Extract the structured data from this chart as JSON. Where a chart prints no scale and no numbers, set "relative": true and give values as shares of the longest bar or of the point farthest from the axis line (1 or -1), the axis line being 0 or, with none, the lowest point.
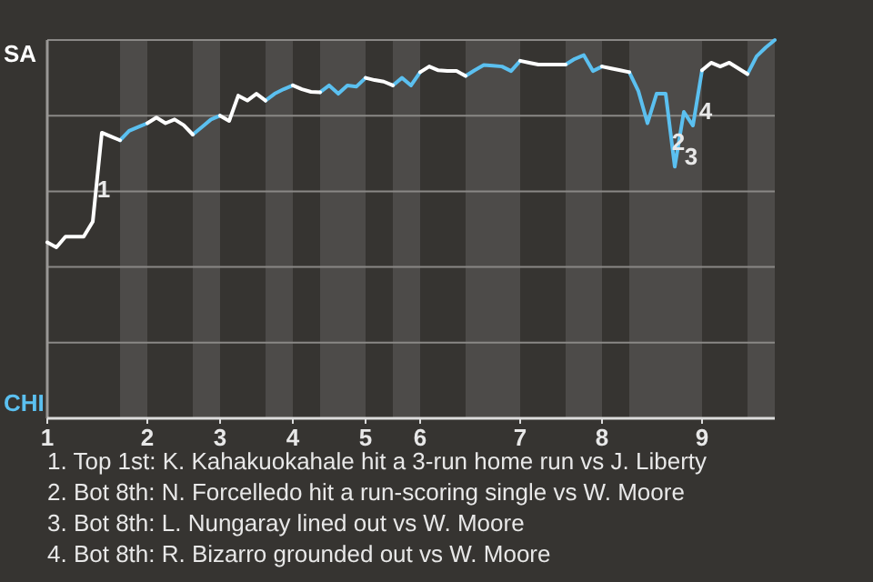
{
  "chart_data": {
    "type": "line",
    "relative": true,
    "categories": [
      "1",
      null,
      null,
      null,
      null,
      null,
      null,
      null,
      null,
      null,
      null,
      "2",
      null,
      null,
      null,
      null,
      null,
      null,
      null,
      "3",
      null,
      null,
      null,
      null,
      null,
      null,
      null,
      "4",
      null,
      null,
      null,
      null,
      null,
      null,
      null,
      "5",
      null,
      null,
      null,
      null,
      null,
      "6",
      null,
      null,
      null,
      null,
      null,
      null,
      null,
      null,
      null,
      null,
      "7",
      null,
      null,
      null,
      null,
      null,
      null,
      null,
      null,
      "8",
      null,
      null,
      null,
      null,
      null,
      null,
      null,
      null,
      null,
      null,
      "9",
      null,
      null,
      null,
      null,
      null,
      null,
      null,
      null
    ],
    "series": [
      {
        "name": "CHI",
        "color": "#5bc0f0",
        "values": [
          null,
          null,
          null,
          null,
          null,
          null,
          null,
          null,
          0.735,
          0.76,
          0.77,
          0.78,
          null,
          null,
          null,
          null,
          0.75,
          0.77,
          0.79,
          0.8,
          null,
          null,
          null,
          null,
          0.84,
          0.858,
          0.87,
          0.88,
          null,
          null,
          0.862,
          0.88,
          0.858,
          0.88,
          0.877,
          0.9,
          null,
          null,
          0.88,
          0.9,
          0.88,
          0.915,
          null,
          null,
          null,
          null,
          0.905,
          0.92,
          0.934,
          0.932,
          0.93,
          0.918,
          0.945,
          null,
          null,
          null,
          null,
          0.935,
          0.95,
          0.96,
          0.918,
          0.93,
          null,
          null,
          0.915,
          0.865,
          0.78,
          0.858,
          0.858,
          0.665,
          0.81,
          0.774,
          0.92,
          null,
          null,
          null,
          null,
          0.91,
          0.957,
          0.98,
          1.0
        ]
      },
      {
        "name": "SA",
        "color": "#ffffff",
        "values": [
          0.465,
          0.452,
          0.48,
          0.48,
          0.48,
          0.52,
          0.755,
          0.745,
          0.735,
          null,
          null,
          0.78,
          0.795,
          0.78,
          0.79,
          0.775,
          0.75,
          null,
          null,
          0.8,
          0.786,
          0.853,
          0.84,
          0.858,
          0.84,
          null,
          null,
          0.88,
          0.87,
          0.863,
          0.862,
          null,
          null,
          null,
          null,
          0.9,
          0.894,
          0.89,
          0.88,
          null,
          null,
          0.915,
          0.93,
          0.92,
          0.918,
          0.918,
          0.905,
          null,
          null,
          null,
          null,
          null,
          0.945,
          0.94,
          0.935,
          0.935,
          0.935,
          0.935,
          null,
          null,
          null,
          0.93,
          0.925,
          0.92,
          0.915,
          null,
          null,
          null,
          null,
          null,
          null,
          null,
          0.92,
          0.94,
          0.93,
          0.94,
          0.925,
          0.91,
          null,
          null,
          null
        ]
      }
    ],
    "grid": "y",
    "marker": "none",
    "line_style": "solid",
    "annotations": [
      "1",
      "2",
      "3",
      "4",
      "1. Top 1st: K. Kahakuokahale hit a 3-run home run vs J. Liberty",
      "2. Bot 8th: N. Forcelledo hit a run-scoring single vs W. Moore",
      "3. Bot 8th: L. Nungaray lined out vs W. Moore",
      "4. Bot 8th: R. Bizarro grounded out vs W. Moore"
    ]
  }
}
